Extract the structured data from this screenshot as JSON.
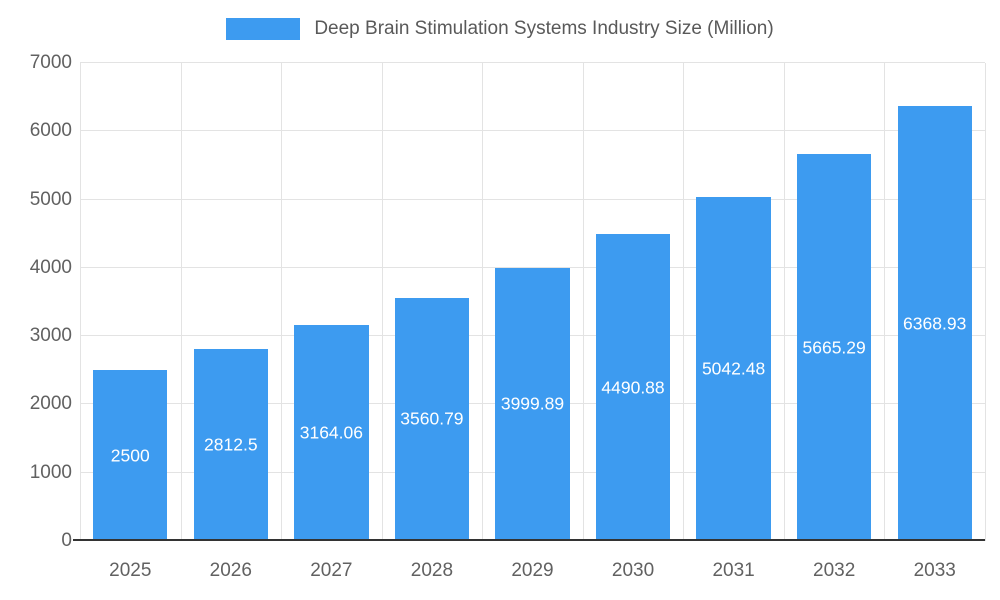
{
  "chart_data": {
    "type": "bar",
    "title": "Deep Brain Stimulation Systems Industry Size (Million)",
    "categories": [
      "2025",
      "2026",
      "2027",
      "2028",
      "2029",
      "2030",
      "2031",
      "2032",
      "2033"
    ],
    "values": [
      2500,
      2812.5,
      3164.06,
      3560.79,
      3999.89,
      4490.88,
      5042.48,
      5665.29,
      6368.93
    ],
    "value_labels": [
      "2500",
      "2812.5",
      "3164.06",
      "3560.79",
      "3999.89",
      "4490.88",
      "5042.48",
      "5665.29",
      "6368.93"
    ],
    "xlabel": "",
    "ylabel": "",
    "ylim": [
      0,
      7000
    ],
    "y_ticks": [
      0,
      1000,
      2000,
      3000,
      4000,
      5000,
      6000,
      7000
    ],
    "legend_position": "top",
    "grid": true,
    "bar_color": "#3d9bf0",
    "value_label_color": "#ffffff",
    "axis_label_color": "#616161",
    "title_color": "#595959",
    "gridline_color": "#e3e3e3",
    "axis_line_color": "#333333"
  }
}
